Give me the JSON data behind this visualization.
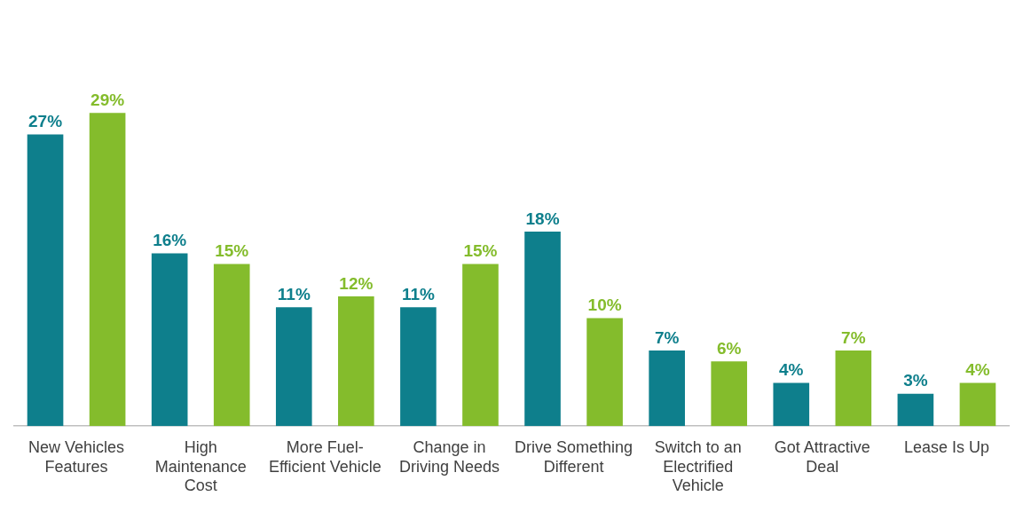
{
  "chart_data": {
    "type": "bar",
    "categories": [
      "New Vehicles Features",
      "High Maintenance Cost",
      "More Fuel-Efficient Vehicle",
      "Change in Driving Needs",
      "Drive Something Different",
      "Switch to an Electrified Vehicle",
      "Got Attractive Deal",
      "Lease Is Up"
    ],
    "series": [
      {
        "color": "#0e7f8c",
        "values": [
          27,
          16,
          11,
          11,
          18,
          7,
          4,
          3
        ],
        "value_labels": [
          "27%",
          "16%",
          "11%",
          "11%",
          "18%",
          "7%",
          "4%",
          "3%"
        ]
      },
      {
        "color": "#84bc2c",
        "values": [
          29,
          15,
          12,
          15,
          10,
          6,
          7,
          4
        ],
        "value_labels": [
          "29%",
          "15%",
          "12%",
          "15%",
          "10%",
          "6%",
          "7%",
          "4%"
        ]
      }
    ],
    "grid": false,
    "legend": false
  }
}
